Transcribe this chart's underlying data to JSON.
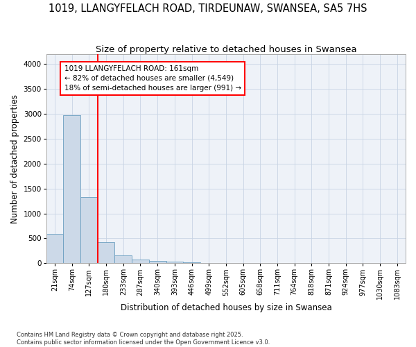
{
  "title_line1": "1019, LLANGYFELACH ROAD, TIRDEUNAW, SWANSEA, SA5 7HS",
  "title_line2": "Size of property relative to detached houses in Swansea",
  "xlabel": "Distribution of detached houses by size in Swansea",
  "ylabel": "Number of detached properties",
  "bar_color": "#ccd9e8",
  "bar_edge_color": "#6a9ec0",
  "categories": [
    "21sqm",
    "74sqm",
    "127sqm",
    "180sqm",
    "233sqm",
    "287sqm",
    "340sqm",
    "393sqm",
    "446sqm",
    "499sqm",
    "552sqm",
    "605sqm",
    "658sqm",
    "711sqm",
    "764sqm",
    "818sqm",
    "871sqm",
    "924sqm",
    "977sqm",
    "1030sqm",
    "1083sqm"
  ],
  "values": [
    590,
    2980,
    1330,
    420,
    160,
    75,
    45,
    38,
    20,
    5,
    0,
    0,
    0,
    0,
    0,
    0,
    0,
    0,
    0,
    0,
    0
  ],
  "ylim": [
    0,
    4200
  ],
  "yticks": [
    0,
    500,
    1000,
    1500,
    2000,
    2500,
    3000,
    3500,
    4000
  ],
  "annotation_text": "1019 LLANGYFELACH ROAD: 161sqm\n← 82% of detached houses are smaller (4,549)\n18% of semi-detached houses are larger (991) →",
  "bg_color": "#eef2f8",
  "grid_color": "#c8d4e4",
  "footer_line1": "Contains HM Land Registry data © Crown copyright and database right 2025.",
  "footer_line2": "Contains public sector information licensed under the Open Government Licence v3.0.",
  "title_fontsize": 10.5,
  "subtitle_fontsize": 9.5,
  "tick_fontsize": 7,
  "axis_label_fontsize": 8.5
}
